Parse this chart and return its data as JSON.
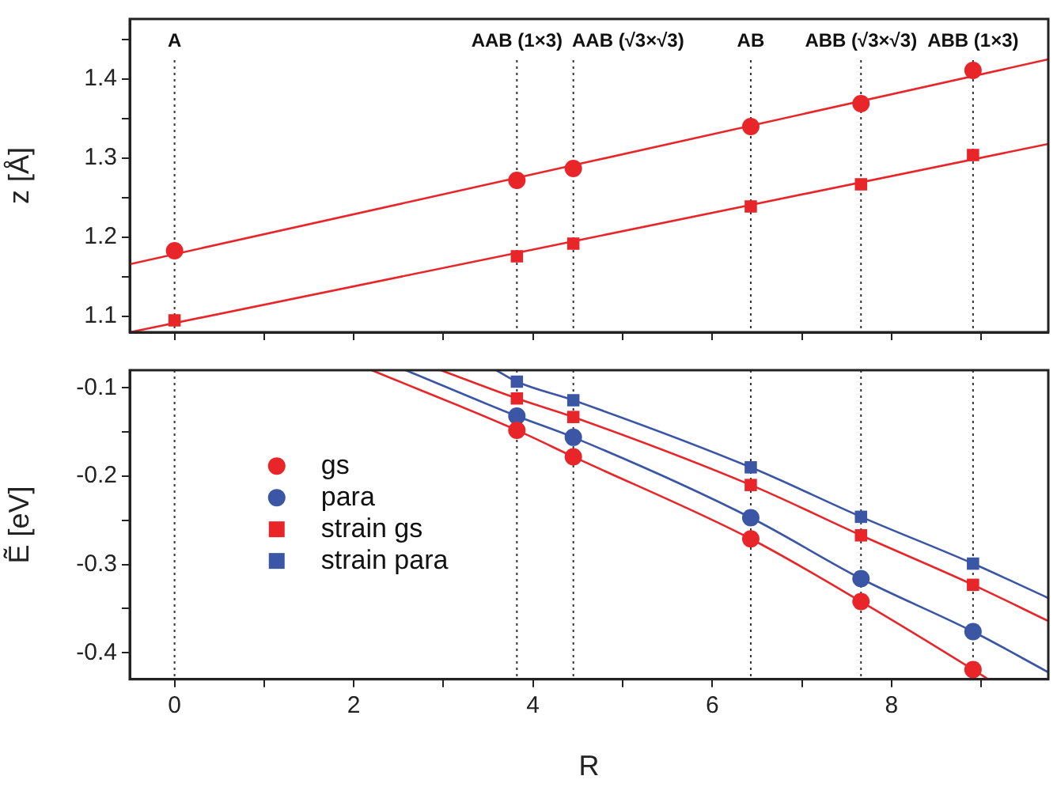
{
  "chart_data": [
    {
      "type": "scatter",
      "ylabel": "z [Å]",
      "tick_labels": "y",
      "grid": false,
      "x": [
        0,
        3.82,
        4.45,
        6.43,
        7.66,
        8.91
      ],
      "xlim": [
        -0.5,
        9.75
      ],
      "xticks": [
        0,
        {
          "value": 1,
          "label": null
        },
        2,
        {
          "value": 3,
          "label": null
        },
        4,
        {
          "value": 5,
          "label": null
        },
        6,
        {
          "value": 7,
          "label": null
        },
        8,
        {
          "value": 9,
          "label": null
        }
      ],
      "ylim": [
        1.08,
        1.476
      ],
      "yticks": [
        {
          "value": 1.1,
          "label": "1.1"
        },
        {
          "value": 1.15,
          "label": null
        },
        {
          "value": 1.2,
          "label": "1.2"
        },
        {
          "value": 1.25,
          "label": null
        },
        {
          "value": 1.3,
          "label": "1.3"
        },
        {
          "value": 1.35,
          "label": null
        },
        {
          "value": 1.4,
          "label": "1.4"
        },
        {
          "value": 1.45,
          "label": null
        }
      ],
      "ref_lines": [
        {
          "axis": "x",
          "value": 0,
          "label": "A",
          "line_style": "dotted"
        },
        {
          "axis": "x",
          "value": 3.82,
          "label": "AAB (1×3)",
          "line_style": "dotted"
        },
        {
          "axis": "x",
          "value": 4.45,
          "label": "AAB (√3×√3)",
          "line_style": "dotted"
        },
        {
          "axis": "x",
          "value": 6.43,
          "label": "AB",
          "line_style": "dotted"
        },
        {
          "axis": "x",
          "value": 7.66,
          "label": "ABB (√3×√3)",
          "line_style": "dotted"
        },
        {
          "axis": "x",
          "value": 8.91,
          "label": "ABB (1×3)",
          "line_style": "dotted"
        }
      ],
      "series": [
        {
          "type": "line",
          "color": "#e8262a",
          "x": [
            -0.5,
            9.75
          ],
          "values": [
            1.166,
            1.425
          ],
          "marker": "none"
        },
        {
          "type": "line",
          "color": "#e8262a",
          "x": [
            -0.5,
            9.75
          ],
          "values": [
            1.08,
            1.318
          ],
          "marker": "none"
        },
        {
          "color": "#e8262a",
          "marker": "circle",
          "values": [
            1.183,
            1.272,
            1.287,
            1.34,
            1.369,
            1.411
          ]
        },
        {
          "color": "#e8262a",
          "marker": "square",
          "values": [
            1.095,
            1.176,
            1.192,
            1.239,
            1.267,
            1.304
          ]
        }
      ]
    },
    {
      "type": "scatter",
      "xlabel": "R",
      "ylabel": "Ẽ [eV]",
      "grid": false,
      "legend": "left",
      "x": [
        3.82,
        4.45,
        6.43,
        7.66,
        8.91
      ],
      "xlim": [
        -0.5,
        9.75
      ],
      "xticks": [
        0,
        {
          "value": 1,
          "label": null
        },
        2,
        {
          "value": 3,
          "label": null
        },
        4,
        {
          "value": 5,
          "label": null
        },
        6,
        {
          "value": 7,
          "label": null
        },
        8,
        {
          "value": 9,
          "label": null
        }
      ],
      "ylim": [
        -0.43,
        -0.08
      ],
      "yticks": [
        {
          "value": -0.4,
          "label": "-0.4"
        },
        {
          "value": -0.35,
          "label": null
        },
        {
          "value": -0.3,
          "label": "-0.3"
        },
        {
          "value": -0.25,
          "label": null
        },
        {
          "value": -0.2,
          "label": "-0.2"
        },
        {
          "value": -0.15,
          "label": null
        },
        {
          "value": -0.1,
          "label": "-0.1"
        }
      ],
      "ref_lines": [
        {
          "axis": "x",
          "value": 0,
          "line_style": "dotted"
        },
        {
          "axis": "x",
          "value": 3.82,
          "line_style": "dotted"
        },
        {
          "axis": "x",
          "value": 4.45,
          "line_style": "dotted"
        },
        {
          "axis": "x",
          "value": 6.43,
          "line_style": "dotted"
        },
        {
          "axis": "x",
          "value": 7.66,
          "line_style": "dotted"
        },
        {
          "axis": "x",
          "value": 8.91,
          "line_style": "dotted"
        }
      ],
      "series": [
        {
          "type": "line",
          "color": "#e8262a",
          "x": [
            2.2,
            3.82,
            4.45,
            6.43,
            7.66,
            8.91,
            9.08
          ],
          "values": [
            -0.08,
            -0.148,
            -0.178,
            -0.271,
            -0.342,
            -0.419,
            -0.43
          ],
          "marker": "none"
        },
        {
          "type": "line",
          "color": "#3a56a5",
          "x": [
            2.58,
            3.82,
            4.45,
            6.43,
            7.66,
            8.91,
            9.75
          ],
          "values": [
            -0.08,
            -0.132,
            -0.156,
            -0.247,
            -0.316,
            -0.376,
            -0.422
          ],
          "marker": "none"
        },
        {
          "type": "line",
          "color": "#e8262a",
          "x": [
            2.97,
            3.82,
            4.45,
            6.43,
            7.66,
            8.91,
            9.75
          ],
          "values": [
            -0.08,
            -0.112,
            -0.133,
            -0.21,
            -0.267,
            -0.323,
            -0.364
          ],
          "marker": "none"
        },
        {
          "type": "line",
          "color": "#3a56a5",
          "x": [
            3.59,
            3.82,
            4.45,
            6.43,
            7.66,
            8.91,
            9.75
          ],
          "values": [
            -0.08,
            -0.093,
            -0.114,
            -0.19,
            -0.246,
            -0.299,
            -0.338
          ],
          "marker": "none"
        },
        {
          "name": "gs",
          "color": "#e8262a",
          "marker": "circle",
          "values": [
            -0.148,
            -0.178,
            -0.271,
            -0.342,
            -0.419
          ]
        },
        {
          "name": "para",
          "color": "#3a56a5",
          "marker": "circle",
          "values": [
            -0.132,
            -0.156,
            -0.247,
            -0.316,
            -0.376
          ]
        },
        {
          "name": "strain gs",
          "color": "#e8262a",
          "marker": "square",
          "values": [
            -0.112,
            -0.133,
            -0.21,
            -0.267,
            -0.323
          ]
        },
        {
          "name": "strain para",
          "color": "#3a56a5",
          "marker": "square",
          "values": [
            -0.093,
            -0.114,
            -0.19,
            -0.246,
            -0.299
          ]
        }
      ]
    }
  ]
}
